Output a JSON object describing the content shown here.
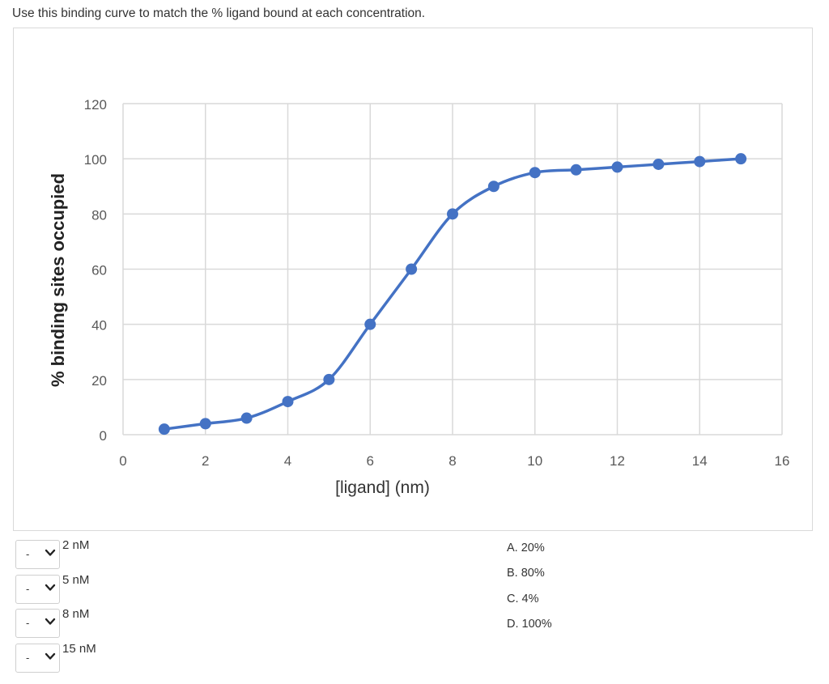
{
  "question": {
    "prompt": "Use this binding curve to match the % ligand bound at each concentration."
  },
  "chart_data": {
    "type": "line",
    "title": "",
    "xlabel": "[ligand] (nm)",
    "ylabel": "% binding sites occupied",
    "xlim": [
      0,
      16
    ],
    "ylim": [
      0,
      120
    ],
    "x_ticks": [
      0,
      2,
      4,
      6,
      8,
      10,
      12,
      14,
      16
    ],
    "y_ticks": [
      0,
      20,
      40,
      60,
      80,
      100,
      120
    ],
    "grid": true,
    "legend": "none",
    "smooth": true,
    "series": [
      {
        "color": "#4472C4",
        "x": [
          1,
          2,
          3,
          4,
          5,
          6,
          7,
          8,
          9,
          10,
          11,
          12,
          13,
          14,
          15
        ],
        "y": [
          2,
          4,
          6,
          12,
          20,
          40,
          60,
          80,
          90,
          95,
          96,
          97,
          98,
          99,
          100
        ]
      }
    ]
  },
  "matching": {
    "rows": [
      {
        "selected": "-",
        "label": "2 nM"
      },
      {
        "selected": "-",
        "label": "5 nM"
      },
      {
        "selected": "-",
        "label": "8 nM"
      },
      {
        "selected": "-",
        "label": "15 nM"
      }
    ],
    "answers": [
      "A. 20%",
      "B. 80%",
      "C. 4%",
      "D. 100%"
    ]
  }
}
